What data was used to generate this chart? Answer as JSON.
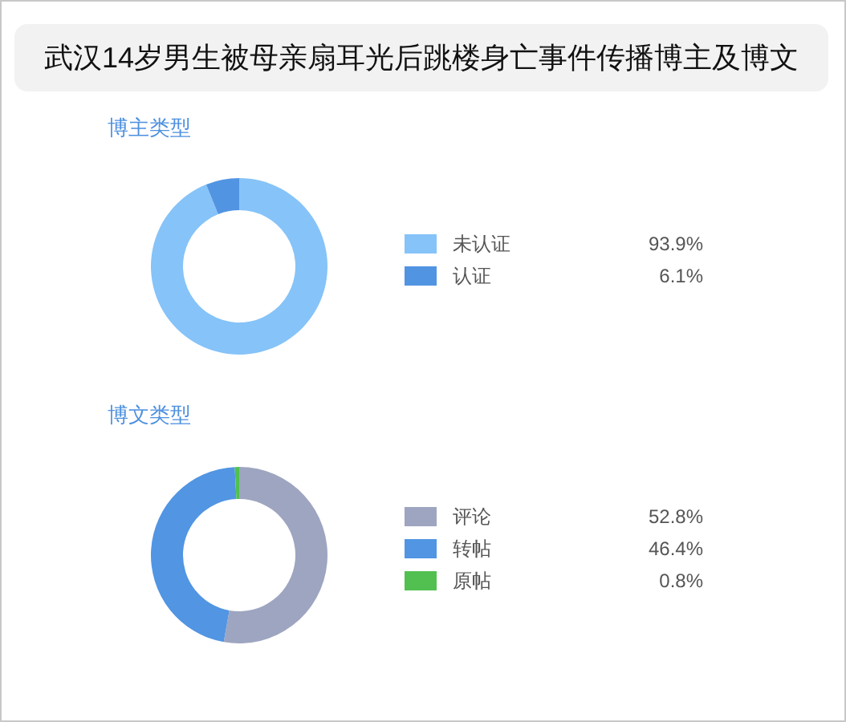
{
  "chart_data": [
    {
      "type": "other",
      "title": "武汉14岁男生被母亲扇耳光后跳楼身亡事件传播博主及博文"
    },
    {
      "type": "donut",
      "title": "博主类型",
      "categories": [
        "未认证",
        "认证"
      ],
      "values": [
        93.9,
        6.1
      ],
      "colors": [
        "#86c3f8",
        "#5194e2"
      ],
      "value_labels": [
        "93.9%",
        "6.1%"
      ],
      "legend": "right"
    },
    {
      "type": "donut",
      "title": "博文类型",
      "categories": [
        "评论",
        "转帖",
        "原帖"
      ],
      "values": [
        52.8,
        46.4,
        0.8
      ],
      "colors": [
        "#9ea5c0",
        "#5195e3",
        "#51c050"
      ],
      "value_labels": [
        "52.8%",
        "46.4%",
        "0.8%"
      ],
      "legend": "right"
    }
  ]
}
